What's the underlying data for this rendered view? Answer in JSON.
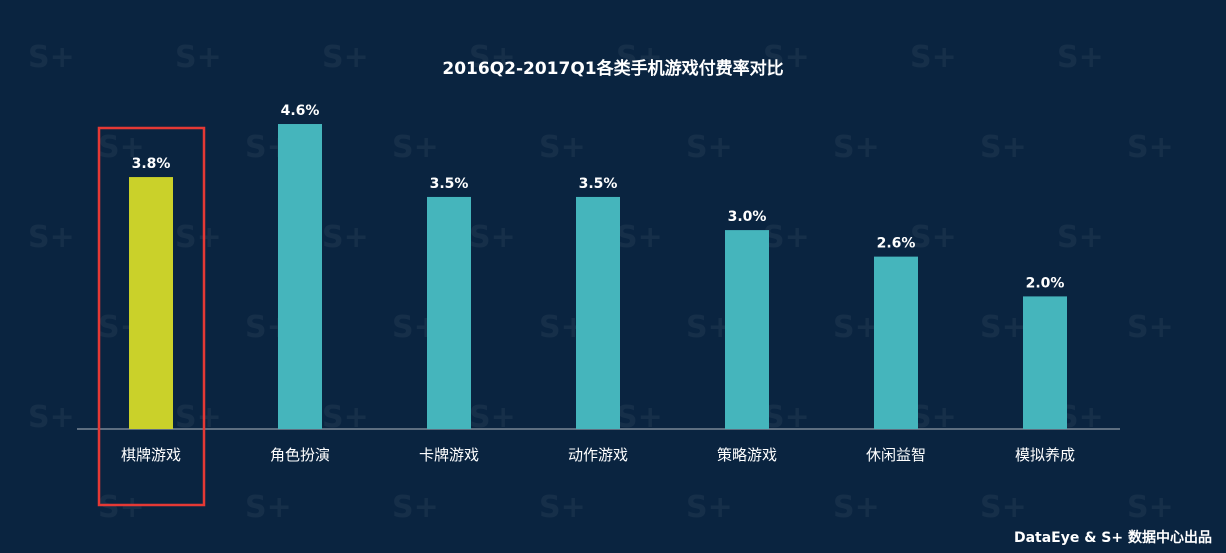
{
  "chart_data": {
    "type": "bar",
    "title": "2016Q2-2017Q1各类手机游戏付费率对比",
    "categories": [
      "棋牌游戏",
      "角色扮演",
      "卡牌游戏",
      "动作游戏",
      "策略游戏",
      "休闲益智",
      "模拟养成"
    ],
    "values": [
      3.8,
      4.6,
      3.5,
      3.5,
      3.0,
      2.6,
      2.0
    ],
    "value_labels": [
      "3.8%",
      "4.6%",
      "3.5%",
      "3.5%",
      "3.0%",
      "2.6%",
      "2.0%"
    ],
    "unit": "%",
    "highlighted_category": "棋牌游戏",
    "xlabel": "",
    "ylabel": "",
    "grid": false,
    "colors": {
      "bar": "#45b5bc",
      "highlight_bar": "#cad12a",
      "highlight_box": "#e53935",
      "axis": "#b0b8c0",
      "background": "#0a2440",
      "text": "#ffffff"
    }
  },
  "watermark_text": "S+",
  "credit": "DataEye & S+ 数据中心出品"
}
